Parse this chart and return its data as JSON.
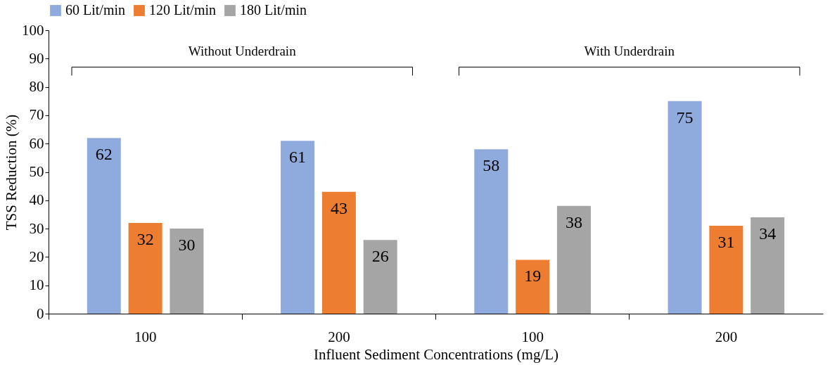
{
  "chart_data": {
    "type": "bar",
    "xlabel": "Influent Sediment Concentrations (mg/L)",
    "ylabel": "TSS Reduction (%)",
    "categories": [
      "100",
      "200",
      "100",
      "200"
    ],
    "series": [
      {
        "name": "60 Lit/min",
        "color": "#8faadc",
        "values": [
          62,
          61,
          58,
          75
        ]
      },
      {
        "name": "120 Lit/min",
        "color": "#ed7d31",
        "values": [
          32,
          43,
          19,
          31
        ]
      },
      {
        "name": "180 Lit/min",
        "color": "#a5a5a5",
        "values": [
          30,
          26,
          38,
          34
        ]
      }
    ],
    "ylim": [
      0,
      100
    ],
    "yticks": [
      0,
      10,
      20,
      30,
      40,
      50,
      60,
      70,
      80,
      90,
      100
    ],
    "annotations": [
      "Without Underdrain",
      "With Underdrain"
    ],
    "data_labels": true,
    "grid": false,
    "legend": "top"
  }
}
